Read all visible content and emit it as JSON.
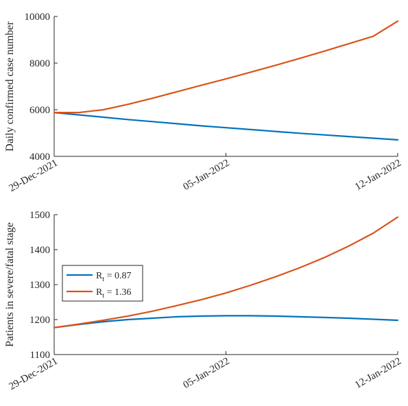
{
  "chart_data": [
    {
      "type": "line",
      "title": "",
      "xlabel": "",
      "ylabel": "Daily confirmed case number",
      "x_ticks": [
        "29-Dec-2021",
        "05-Jan-2022",
        "12-Jan-2022"
      ],
      "xlim": [
        "29-Dec-2021",
        "12-Jan-2022"
      ],
      "ylim": [
        4000,
        10000
      ],
      "y_ticks": [
        4000,
        6000,
        8000,
        10000
      ],
      "y_tick_labels": [
        "4000",
        "6000",
        "8000",
        "10000"
      ],
      "grid": false,
      "legend": null,
      "x": [
        "29-Dec-2021",
        "30-Dec-2021",
        "31-Dec-2021",
        "01-Jan-2022",
        "02-Jan-2022",
        "03-Jan-2022",
        "04-Jan-2022",
        "05-Jan-2022",
        "06-Jan-2022",
        "07-Jan-2022",
        "08-Jan-2022",
        "09-Jan-2022",
        "10-Jan-2022",
        "11-Jan-2022",
        "12-Jan-2022"
      ],
      "series": [
        {
          "color": "#0072BD",
          "values": [
            5880,
            5780,
            5680,
            5580,
            5490,
            5400,
            5310,
            5230,
            5150,
            5070,
            4990,
            4920,
            4850,
            4780,
            4710
          ]
        },
        {
          "color": "#D95319",
          "values": [
            5880,
            5880,
            6000,
            6230,
            6490,
            6770,
            7050,
            7320,
            7610,
            7900,
            8200,
            8510,
            8830,
            9150,
            9800
          ]
        }
      ]
    },
    {
      "type": "line",
      "title": "",
      "xlabel": "",
      "ylabel": "Patients in severe/fatal stage",
      "x_ticks": [
        "29-Dec-2021",
        "05-Jan-2022",
        "12-Jan-2022"
      ],
      "xlim": [
        "29-Dec-2021",
        "12-Jan-2022"
      ],
      "ylim": [
        1100,
        1500
      ],
      "y_ticks": [
        1100,
        1200,
        1300,
        1400,
        1500
      ],
      "y_tick_labels": [
        "1100",
        "1200",
        "1300",
        "1400",
        "1500"
      ],
      "grid": false,
      "legend": "middle-left",
      "x": [
        "29-Dec-2021",
        "30-Dec-2021",
        "31-Dec-2021",
        "01-Jan-2022",
        "02-Jan-2022",
        "03-Jan-2022",
        "04-Jan-2022",
        "05-Jan-2022",
        "06-Jan-2022",
        "07-Jan-2022",
        "08-Jan-2022",
        "09-Jan-2022",
        "10-Jan-2022",
        "11-Jan-2022",
        "12-Jan-2022"
      ],
      "series": [
        {
          "name": "R",
          "name_subscript": "t",
          "name_suffix": " = 0.87",
          "color": "#0072BD",
          "values": [
            1177,
            1186,
            1194,
            1200,
            1204,
            1208,
            1210,
            1211,
            1211,
            1210,
            1208,
            1206,
            1204,
            1201,
            1198
          ]
        },
        {
          "name": "R",
          "name_subscript": "t",
          "name_suffix": " = 1.36",
          "color": "#D95319",
          "values": [
            1177,
            1187,
            1198,
            1210,
            1224,
            1240,
            1257,
            1276,
            1298,
            1322,
            1348,
            1377,
            1410,
            1447,
            1493
          ]
        }
      ]
    }
  ]
}
